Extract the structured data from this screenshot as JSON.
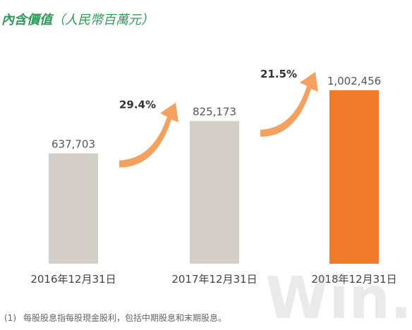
{
  "title": {
    "main": "內含價值",
    "unit": "（人民幣百萬元）"
  },
  "footnote": {
    "mark": "(1)",
    "text": "每股股息指每股現金股利，包括中期股息和末期股息。"
  },
  "watermark": {
    "text": "Win.d"
  },
  "colors": {
    "title": "#2e9a5a",
    "bar_gray": "#d4cec9",
    "bar_highlight": "#f17a2a",
    "arrow": "#f4a160"
  },
  "chart_data": {
    "type": "bar",
    "title": "內含價值",
    "categories": [
      "2016年12月31日",
      "2017年12月31日",
      "2018年12月31日"
    ],
    "values": [
      637703,
      825173,
      1002456
    ],
    "value_labels": [
      "637,703",
      "825,173",
      "1,002,456"
    ],
    "highlight_index": 2,
    "growth_annotations": [
      {
        "from": 0,
        "to": 1,
        "label": "29.4%"
      },
      {
        "from": 1,
        "to": 2,
        "label": "21.5%"
      }
    ],
    "ylim": [
      0,
      1002456
    ],
    "grid": false,
    "legend": "none"
  }
}
